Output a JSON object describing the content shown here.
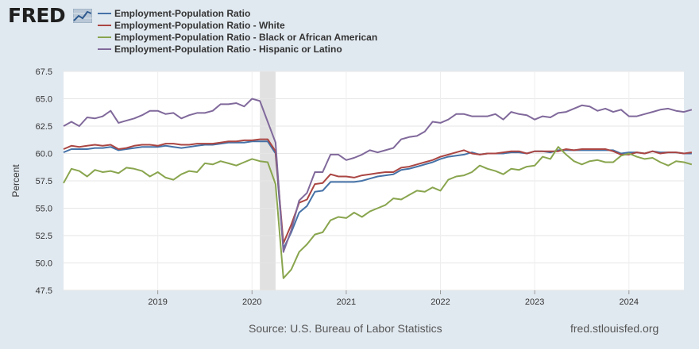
{
  "logo": {
    "text": "FRED",
    "icon": "fred-graph-icon"
  },
  "source": "Source: U.S. Bureau of Labor Statistics",
  "site": "fred.stlouisfed.org",
  "chart_data": {
    "type": "line",
    "title": "",
    "xlabel": "",
    "ylabel": "Percent",
    "ylim": [
      47.5,
      67.5
    ],
    "yticks": [
      "47.5",
      "50.0",
      "52.5",
      "55.0",
      "57.5",
      "60.0",
      "62.5",
      "65.0",
      "67.5"
    ],
    "xlim": [
      "2018-01",
      "2024-08"
    ],
    "xticks": [
      {
        "date": "2019-01",
        "label": "2019"
      },
      {
        "date": "2020-01",
        "label": "2020"
      },
      {
        "date": "2021-01",
        "label": "2021"
      },
      {
        "date": "2022-01",
        "label": "2022"
      },
      {
        "date": "2023-01",
        "label": "2023"
      },
      {
        "date": "2024-01",
        "label": "2024"
      }
    ],
    "grid": true,
    "legend_position": "top-left",
    "recession": {
      "start": "2020-02",
      "end": "2020-04",
      "color": "#e1e1e1"
    },
    "start": "2018-01",
    "series": [
      {
        "name": "Employment-Population Ratio",
        "color": "#4572a7",
        "values": [
          60.1,
          60.4,
          60.4,
          60.4,
          60.5,
          60.5,
          60.6,
          60.3,
          60.4,
          60.5,
          60.6,
          60.6,
          60.6,
          60.7,
          60.6,
          60.5,
          60.6,
          60.7,
          60.8,
          60.8,
          60.9,
          61.0,
          61.0,
          61.0,
          61.1,
          61.1,
          61.1,
          60.0,
          51.3,
          52.8,
          54.6,
          55.2,
          56.5,
          56.6,
          57.4,
          57.4,
          57.4,
          57.4,
          57.5,
          57.7,
          57.9,
          58.0,
          58.1,
          58.5,
          58.6,
          58.8,
          59.0,
          59.2,
          59.5,
          59.7,
          59.8,
          59.9,
          60.1,
          59.9,
          60.0,
          60.0,
          60.0,
          60.1,
          60.1,
          60.0,
          60.2,
          60.2,
          60.1,
          60.3,
          60.3,
          60.3,
          60.3,
          60.3,
          60.3,
          60.3,
          60.3,
          60.0,
          60.1,
          60.1,
          60.0,
          60.2,
          60.1,
          60.1,
          60.1,
          60.0,
          60.0
        ]
      },
      {
        "name": "Employment-Population Ratio - White",
        "color": "#aa4643",
        "values": [
          60.4,
          60.7,
          60.6,
          60.7,
          60.8,
          60.7,
          60.8,
          60.4,
          60.5,
          60.7,
          60.8,
          60.8,
          60.7,
          60.9,
          60.9,
          60.8,
          60.8,
          60.9,
          60.9,
          60.9,
          61.0,
          61.1,
          61.1,
          61.2,
          61.2,
          61.3,
          61.3,
          60.2,
          51.8,
          53.5,
          55.5,
          55.8,
          57.2,
          57.3,
          58.1,
          57.9,
          57.9,
          57.8,
          58.0,
          58.1,
          58.2,
          58.3,
          58.3,
          58.7,
          58.8,
          59.0,
          59.2,
          59.4,
          59.7,
          59.9,
          60.1,
          60.3,
          60.0,
          59.9,
          60.0,
          60.0,
          60.1,
          60.2,
          60.2,
          60.0,
          60.2,
          60.2,
          60.2,
          60.2,
          60.4,
          60.3,
          60.4,
          60.4,
          60.4,
          60.4,
          60.2,
          59.9,
          59.9,
          60.1,
          60.0,
          60.2,
          60.0,
          60.1,
          60.1,
          60.0,
          60.1
        ]
      },
      {
        "name": "Employment-Population Ratio - Black or African American",
        "color": "#89a54e",
        "values": [
          57.3,
          58.6,
          58.4,
          57.9,
          58.5,
          58.3,
          58.4,
          58.2,
          58.7,
          58.6,
          58.4,
          57.9,
          58.3,
          57.8,
          57.6,
          58.1,
          58.4,
          58.3,
          59.1,
          59.0,
          59.3,
          59.1,
          58.9,
          59.2,
          59.5,
          59.3,
          59.2,
          57.2,
          48.6,
          49.4,
          51.0,
          51.7,
          52.6,
          52.8,
          53.9,
          54.2,
          54.1,
          54.6,
          54.2,
          54.7,
          55.0,
          55.3,
          55.9,
          55.8,
          56.2,
          56.6,
          56.5,
          56.9,
          56.6,
          57.6,
          57.9,
          58.0,
          58.3,
          58.9,
          58.6,
          58.4,
          58.1,
          58.6,
          58.5,
          58.8,
          58.9,
          59.7,
          59.5,
          60.6,
          59.9,
          59.3,
          59.0,
          59.3,
          59.4,
          59.2,
          59.2,
          59.8,
          60.0,
          59.7,
          59.5,
          59.6,
          59.2,
          58.9,
          59.3,
          59.2,
          59.0
        ]
      },
      {
        "name": "Employment-Population Ratio - Hispanic or Latino",
        "color": "#80699b",
        "values": [
          62.5,
          62.9,
          62.5,
          63.3,
          63.2,
          63.4,
          63.9,
          62.8,
          63.0,
          63.2,
          63.5,
          63.9,
          63.9,
          63.6,
          63.7,
          63.2,
          63.5,
          63.7,
          63.7,
          63.9,
          64.5,
          64.5,
          64.6,
          64.3,
          65.0,
          64.8,
          62.9,
          61.0,
          51.0,
          53.0,
          55.7,
          56.4,
          58.3,
          58.3,
          59.9,
          59.9,
          59.4,
          59.6,
          59.9,
          60.3,
          60.1,
          60.3,
          60.5,
          61.3,
          61.5,
          61.6,
          62.0,
          62.9,
          62.8,
          63.1,
          63.6,
          63.6,
          63.4,
          63.4,
          63.4,
          63.6,
          63.1,
          63.8,
          63.6,
          63.5,
          63.1,
          63.4,
          63.3,
          63.7,
          63.8,
          64.1,
          64.4,
          64.3,
          63.9,
          64.1,
          63.8,
          64.0,
          63.4,
          63.4,
          63.6,
          63.8,
          64.0,
          64.1,
          63.9,
          63.8,
          64.0
        ]
      }
    ]
  }
}
